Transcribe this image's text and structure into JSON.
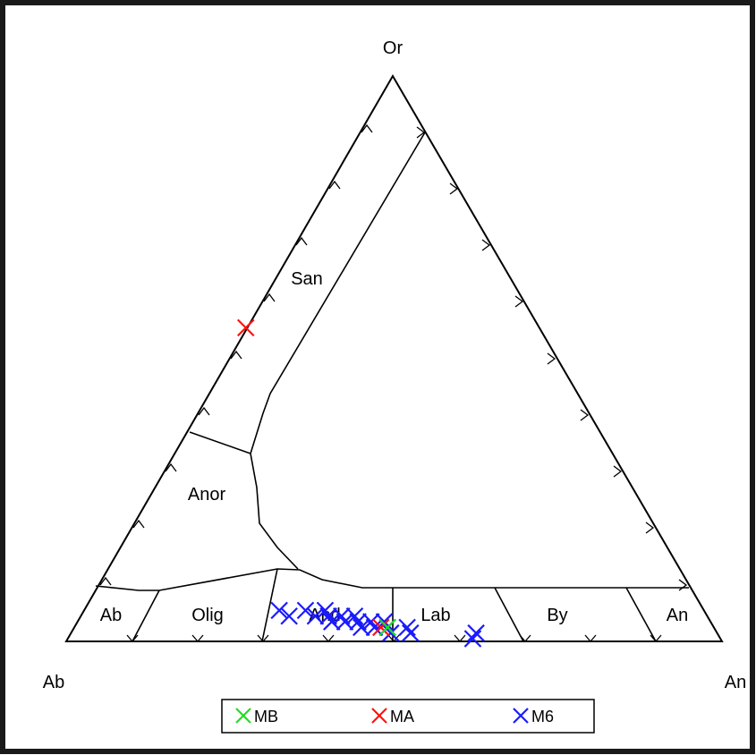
{
  "diagram": {
    "vertex_labels": {
      "top": "Or",
      "left": "Ab",
      "right": "An"
    },
    "field_labels": {
      "san": "San",
      "anor": "Anor",
      "ab": "Ab",
      "olig": "Olig",
      "and": "And",
      "lab": "Lab",
      "by": "By",
      "an": "An"
    }
  },
  "legend": {
    "items": [
      {
        "label": "MB",
        "color": "#22dd22"
      },
      {
        "label": "MA",
        "color": "#ff1111"
      },
      {
        "label": "M6",
        "color": "#1a1aff"
      }
    ]
  },
  "samples": {
    "MA": [
      {
        "an": 0.0,
        "or": 0.55
      },
      {
        "an": 0.47,
        "or": 0.02
      }
    ],
    "MB": [
      {
        "an": 0.48,
        "or": 0.02
      }
    ],
    "M6": [
      {
        "an": 0.3,
        "or": 0.05
      },
      {
        "an": 0.32,
        "or": 0.04
      },
      {
        "an": 0.34,
        "or": 0.05
      },
      {
        "an": 0.36,
        "or": 0.04
      },
      {
        "an": 0.37,
        "or": 0.05
      },
      {
        "an": 0.38,
        "or": 0.04
      },
      {
        "an": 0.39,
        "or": 0.03
      },
      {
        "an": 0.4,
        "or": 0.04
      },
      {
        "an": 0.41,
        "or": 0.03
      },
      {
        "an": 0.42,
        "or": 0.04
      },
      {
        "an": 0.43,
        "or": 0.03
      },
      {
        "an": 0.44,
        "or": 0.02
      },
      {
        "an": 0.45,
        "or": 0.03
      },
      {
        "an": 0.46,
        "or": 0.02
      },
      {
        "an": 0.47,
        "or": 0.03
      },
      {
        "an": 0.48,
        "or": 0.02
      },
      {
        "an": 0.49,
        "or": 0.01
      },
      {
        "an": 0.51,
        "or": 0.02
      },
      {
        "an": 0.52,
        "or": 0.01
      },
      {
        "an": 0.62,
        "or": 0.01
      },
      {
        "an": 0.62,
        "or": 0.0
      }
    ]
  }
}
